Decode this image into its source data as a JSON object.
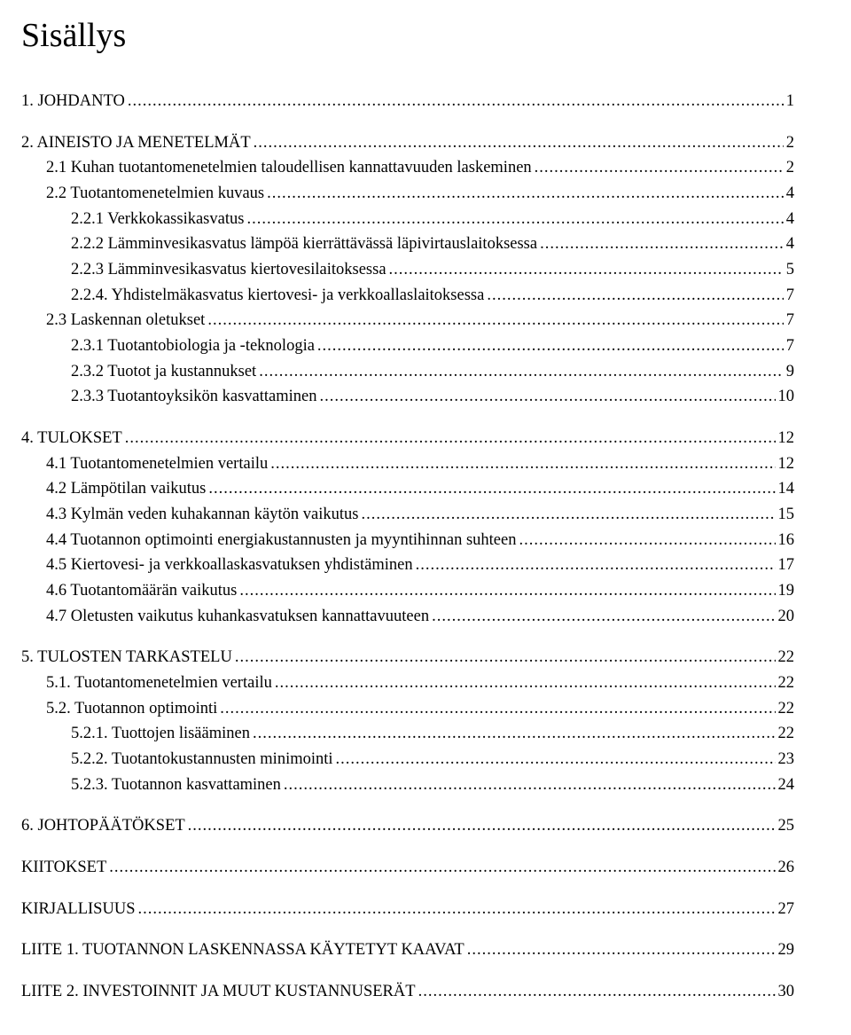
{
  "title": "Sisällys",
  "toc": [
    {
      "level": 1,
      "label": "1. JOHDANTO",
      "page": "1",
      "gapBefore": false
    },
    {
      "level": 1,
      "label": "2. AINEISTO JA MENETELMÄT",
      "page": "2",
      "gapBefore": true
    },
    {
      "level": 2,
      "label": "2.1 Kuhan tuotantomenetelmien taloudellisen kannattavuuden laskeminen",
      "page": "2",
      "gapBefore": false
    },
    {
      "level": 2,
      "label": "2.2 Tuotantomenetelmien kuvaus",
      "page": "4",
      "gapBefore": false
    },
    {
      "level": 3,
      "label": "2.2.1 Verkkokassikasvatus",
      "page": "4",
      "gapBefore": false
    },
    {
      "level": 3,
      "label": "2.2.2 Lämminvesikasvatus lämpöä kierrättävässä läpivirtauslaitoksessa",
      "page": "4",
      "gapBefore": false
    },
    {
      "level": 3,
      "label": "2.2.3 Lämminvesikasvatus kiertovesilaitoksessa",
      "page": "5",
      "gapBefore": false
    },
    {
      "level": 3,
      "label": "2.2.4. Yhdistelmäkasvatus kiertovesi- ja verkkoallaslaitoksessa",
      "page": "7",
      "gapBefore": false
    },
    {
      "level": 2,
      "label": "2.3 Laskennan oletukset",
      "page": "7",
      "gapBefore": false
    },
    {
      "level": 3,
      "label": "2.3.1 Tuotantobiologia ja -teknologia",
      "page": "7",
      "gapBefore": false
    },
    {
      "level": 3,
      "label": "2.3.2 Tuotot ja kustannukset",
      "page": "9",
      "gapBefore": false
    },
    {
      "level": 3,
      "label": "2.3.3 Tuotantoyksikön kasvattaminen",
      "page": "10",
      "gapBefore": false
    },
    {
      "level": 1,
      "label": "4. TULOKSET",
      "page": "12",
      "gapBefore": true
    },
    {
      "level": 2,
      "label": "4.1 Tuotantomenetelmien vertailu",
      "page": "12",
      "gapBefore": false
    },
    {
      "level": 2,
      "label": "4.2 Lämpötilan vaikutus",
      "page": "14",
      "gapBefore": false
    },
    {
      "level": 2,
      "label": "4.3 Kylmän veden kuhakannan käytön vaikutus",
      "page": "15",
      "gapBefore": false
    },
    {
      "level": 2,
      "label": "4.4 Tuotannon optimointi energiakustannusten ja myyntihinnan suhteen",
      "page": "16",
      "gapBefore": false
    },
    {
      "level": 2,
      "label": "4.5 Kiertovesi- ja verkkoallaskasvatuksen yhdistäminen",
      "page": "17",
      "gapBefore": false
    },
    {
      "level": 2,
      "label": "4.6 Tuotantomäärän vaikutus",
      "page": "19",
      "gapBefore": false
    },
    {
      "level": 2,
      "label": "4.7 Oletusten vaikutus kuhankasvatuksen kannattavuuteen",
      "page": "20",
      "gapBefore": false
    },
    {
      "level": 1,
      "label": "5. TULOSTEN TARKASTELU",
      "page": "22",
      "gapBefore": true
    },
    {
      "level": 2,
      "label": "5.1. Tuotantomenetelmien vertailu",
      "page": "22",
      "gapBefore": false
    },
    {
      "level": 2,
      "label": "5.2. Tuotannon optimointi",
      "page": "22",
      "gapBefore": false
    },
    {
      "level": 3,
      "label": "5.2.1. Tuottojen lisääminen",
      "page": "22",
      "gapBefore": false
    },
    {
      "level": 3,
      "label": "5.2.2. Tuotantokustannusten minimointi",
      "page": "23",
      "gapBefore": false
    },
    {
      "level": 3,
      "label": "5.2.3. Tuotannon kasvattaminen",
      "page": "24",
      "gapBefore": false
    },
    {
      "level": 1,
      "label": "6. JOHTOPÄÄTÖKSET",
      "page": "25",
      "gapBefore": true
    },
    {
      "level": 1,
      "label": "KIITOKSET",
      "page": "26",
      "gapBefore": true
    },
    {
      "level": 1,
      "label": "KIRJALLISUUS",
      "page": "27",
      "gapBefore": true
    },
    {
      "level": 1,
      "label": "LIITE 1. TUOTANNON LASKENNASSA KÄYTETYT KAAVAT",
      "page": "29",
      "gapBefore": true
    },
    {
      "level": 1,
      "label": "LIITE 2. INVESTOINNIT JA MUUT KUSTANNUSERÄT",
      "page": "30",
      "gapBefore": true
    }
  ]
}
